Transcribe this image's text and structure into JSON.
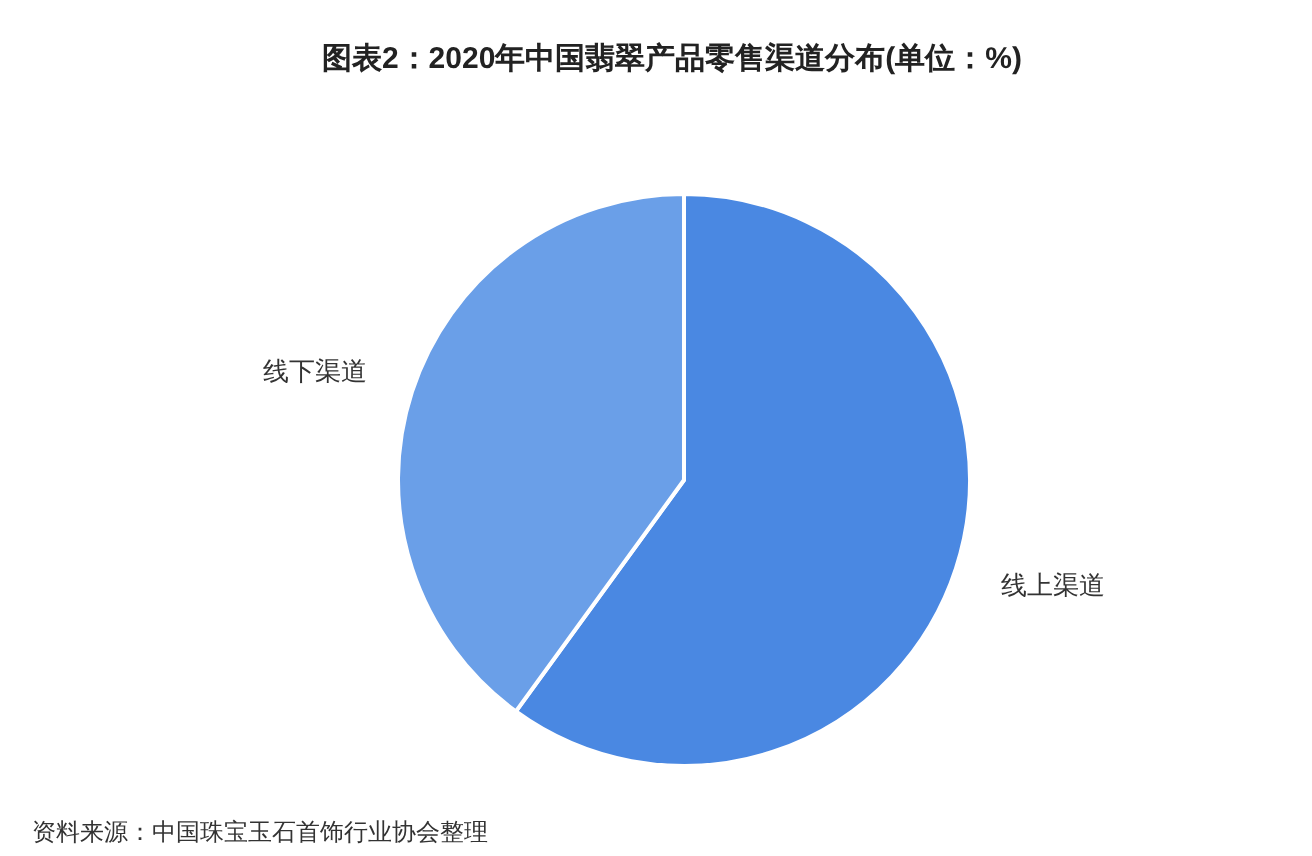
{
  "chart_data": {
    "type": "pie",
    "title": "图表2：2020年中国翡翠产品零售渠道分布(单位：%)",
    "categories": [
      "线上渠道",
      "线下渠道"
    ],
    "values": [
      60,
      40
    ],
    "colors": [
      "#4a88e2",
      "#6a9fe8"
    ],
    "annotations": [
      "资料来源：中国珠宝玉石首饰行业协会整理"
    ]
  }
}
